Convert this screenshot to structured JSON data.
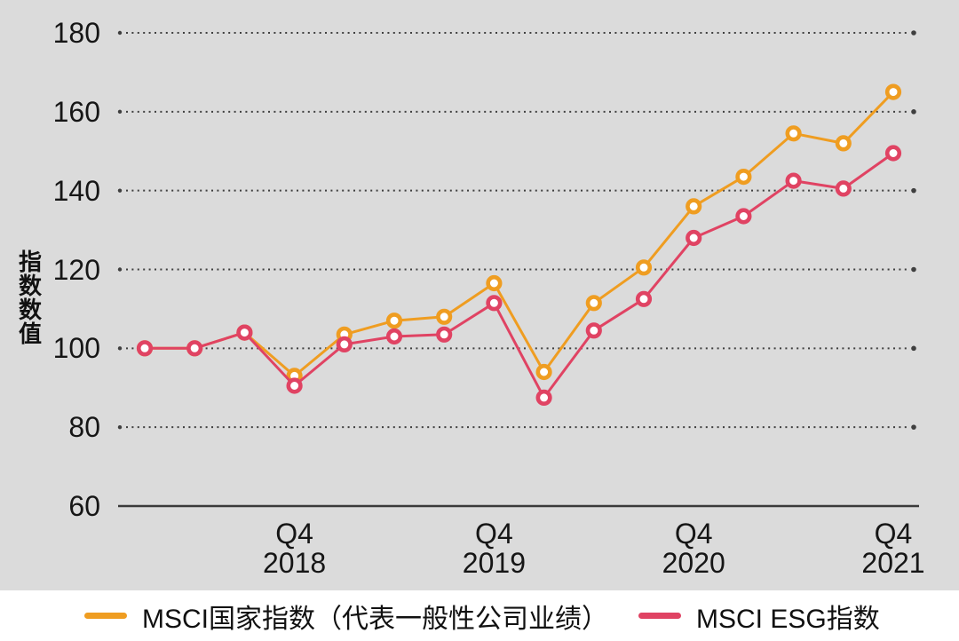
{
  "chart_data": {
    "type": "line",
    "title": "",
    "ylabel": "指数数值",
    "x": [
      "2018 Q1",
      "2018 Q2",
      "2018 Q3",
      "2018 Q4",
      "2019 Q1",
      "2019 Q2",
      "2019 Q3",
      "2019 Q4",
      "2020 Q1",
      "2020 Q2",
      "2020 Q3",
      "2020 Q4",
      "2021 Q1",
      "2021 Q2",
      "2021 Q3",
      "2021 Q4"
    ],
    "xticks": [
      {
        "index": 3,
        "line1": "Q4",
        "line2": "2018"
      },
      {
        "index": 7,
        "line1": "Q4",
        "line2": "2019"
      },
      {
        "index": 11,
        "line1": "Q4",
        "line2": "2020"
      },
      {
        "index": 15,
        "line1": "Q4",
        "line2": "2021"
      }
    ],
    "yticks": [
      180,
      160,
      140,
      120,
      100,
      80,
      60
    ],
    "ylim": [
      60,
      180
    ],
    "grid": "horizontal-dotted",
    "legend_position": "bottom",
    "series": [
      {
        "name": "MSCI国家指数（代表一般性公司业绩）",
        "color": "#ef9d21",
        "marker": "open-circle",
        "values": [
          100,
          100,
          104,
          93,
          103.5,
          107,
          108,
          116.5,
          94,
          111.5,
          120.5,
          136,
          143.5,
          154.5,
          152,
          165
        ]
      },
      {
        "name": "MSCI ESG指数",
        "color": "#e04363",
        "marker": "open-circle",
        "values": [
          100,
          100,
          104,
          90.5,
          101,
          103,
          103.5,
          111.5,
          87.5,
          104.5,
          112.5,
          128,
          133.5,
          142.5,
          140.5,
          149.5
        ]
      }
    ]
  },
  "colors": {
    "plot_background": "#dbdbdb",
    "page_background": "#ffffff",
    "text": "#161616",
    "gridline": "#3f3f3f",
    "axis_line": "#3a3a3a",
    "marker_fill": "#ffffff"
  }
}
